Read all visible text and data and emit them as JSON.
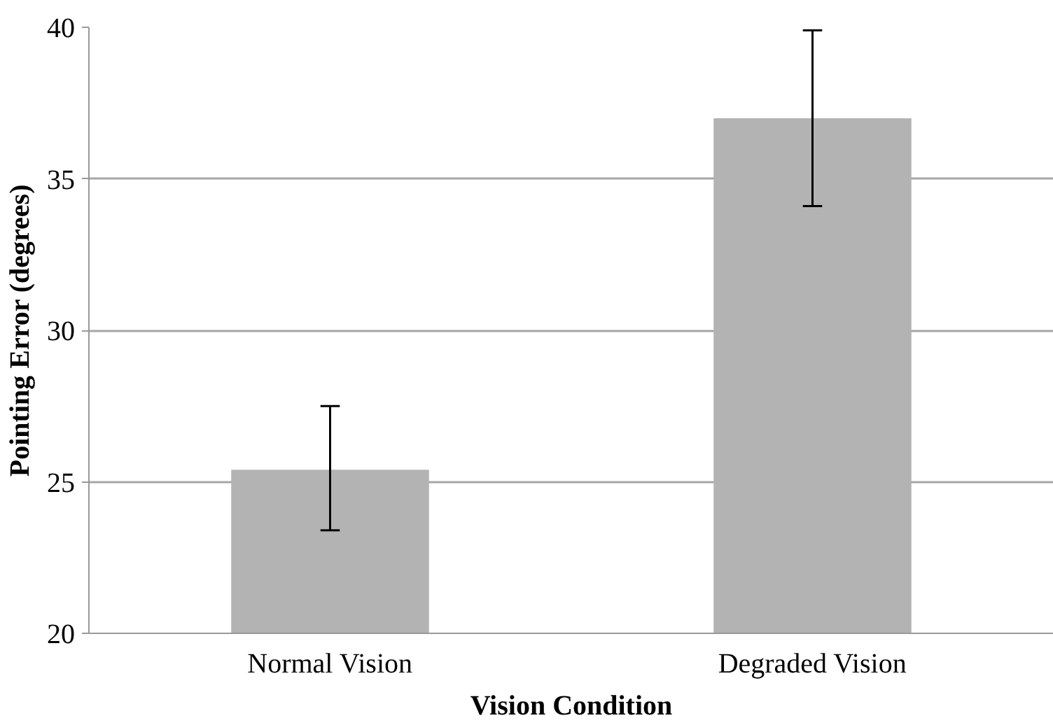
{
  "chart_data": {
    "type": "bar",
    "xlabel": "Vision Condition",
    "ylabel": "Pointing Error (degrees)",
    "categories": [
      "Normal Vision",
      "Degraded Vision"
    ],
    "values": [
      25.4,
      37.0
    ],
    "errors": [
      [
        23.4,
        27.5
      ],
      [
        34.1,
        39.9
      ]
    ],
    "color": "#b3b3b3",
    "ylim": [
      20,
      40
    ],
    "yticks": [
      20,
      25,
      30,
      35,
      40
    ],
    "grid": "y"
  }
}
